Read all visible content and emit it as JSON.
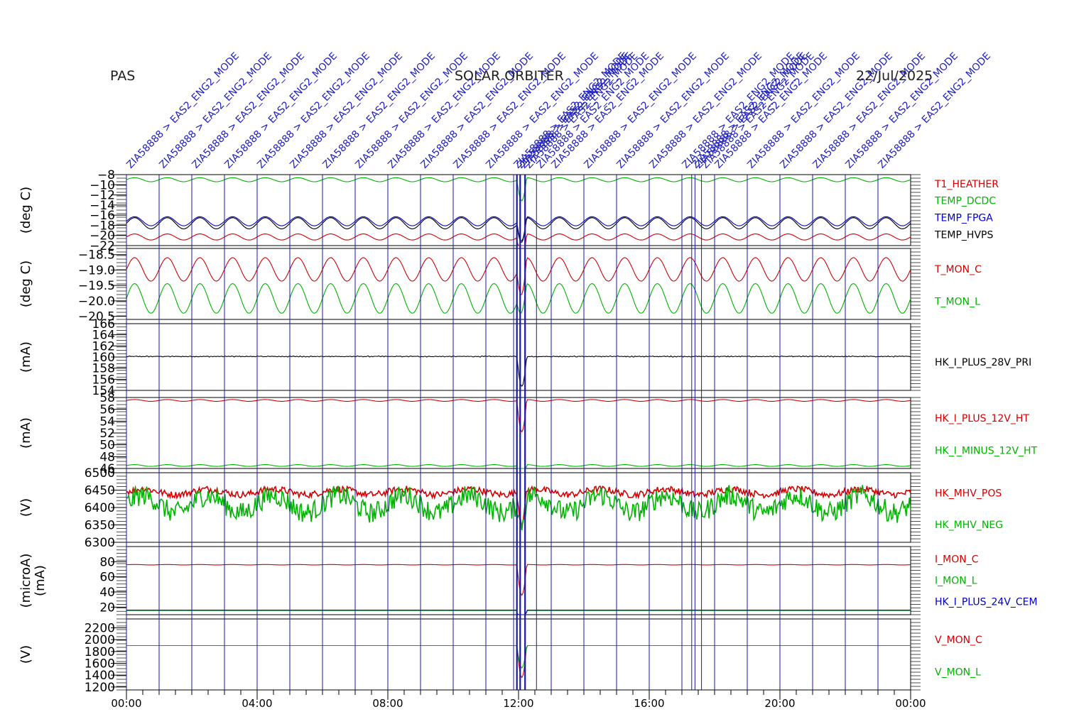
{
  "header": {
    "left": "PAS",
    "center": "SOLAR ORBITER",
    "right": "22/Jul/2025"
  },
  "colors": {
    "red": "#d40000",
    "green": "#00b400",
    "blue": "#0000c8",
    "black": "#000000",
    "event_line": "#1a1aa0",
    "event_label": "#2020c0",
    "frame": "#000000"
  },
  "chart_data": {
    "type": "line",
    "x_axis": {
      "unit": "time of day",
      "range": [
        "00:00",
        "24:00"
      ],
      "ticks": [
        "00:00",
        "04:00",
        "08:00",
        "12:00",
        "16:00",
        "20:00",
        "00:00"
      ]
    },
    "event_labels": [
      "ZIA58888 > EAS2_ENG2_MODE"
    ],
    "event_times_h": [
      0.0,
      1.0,
      2.0,
      3.0,
      4.0,
      5.0,
      6.0,
      7.0,
      8.0,
      9.0,
      10.0,
      11.0,
      11.85,
      11.95,
      12.05,
      12.2,
      12.55,
      13.0,
      14.0,
      15.0,
      16.0,
      17.0,
      17.3,
      17.4,
      17.6,
      18.0,
      19.0,
      20.0,
      21.0,
      22.0,
      23.0
    ],
    "panels": [
      {
        "ylabel": "(deg C)",
        "ylim": [
          -22,
          -8
        ],
        "yticks": [
          "-8",
          "-10",
          "-12",
          "-14",
          "-16",
          "-18",
          "-20",
          "-22"
        ],
        "series": [
          {
            "name": "T1_HEATHER",
            "color": "red",
            "base": -20.3,
            "amp": 0.6,
            "period_h": 1.0
          },
          {
            "name": "TEMP_DCDC",
            "color": "green",
            "base": -9.0,
            "amp": 0.4,
            "period_h": 1.0
          },
          {
            "name": "TEMP_FPGA",
            "color": "blue",
            "base": -17.2,
            "amp": 0.9,
            "period_h": 1.0
          },
          {
            "name": "TEMP_HVPS",
            "color": "black",
            "base": -17.6,
            "amp": 1.1,
            "period_h": 1.0
          }
        ]
      },
      {
        "ylabel": "(deg C)",
        "ylim": [
          -20.6,
          -18.3
        ],
        "yticks": [
          "-18.5",
          "-19.0",
          "-19.5",
          "-20.0",
          "-20.5"
        ],
        "series": [
          {
            "name": "T_MON_C",
            "color": "red",
            "base": -18.98,
            "amp": 0.38,
            "period_h": 1.0
          },
          {
            "name": "T_MON_L",
            "color": "green",
            "base": -19.92,
            "amp": 0.48,
            "period_h": 1.0
          }
        ]
      },
      {
        "ylabel": "(mA)",
        "ylim": [
          154,
          166
        ],
        "yticks": [
          "166",
          "164",
          "162",
          "160",
          "158",
          "156",
          "154"
        ],
        "series": [
          {
            "name": "HK_I_PLUS_28V_PRI",
            "color": "black",
            "base": 160.1,
            "amp": 0.05,
            "period_h": 0.05
          }
        ]
      },
      {
        "ylabel": "(mA)",
        "ylim": [
          46,
          58
        ],
        "yticks": [
          "58",
          "56",
          "54",
          "52",
          "50",
          "48",
          "46"
        ],
        "series": [
          {
            "name": "HK_I_PLUS_12V_HT",
            "color": "red",
            "base": 57.5,
            "amp": 0.15,
            "period_h": 1.0
          },
          {
            "name": "HK_I_MINUS_12V_HT",
            "color": "green",
            "base": 46.5,
            "amp": 0.15,
            "period_h": 1.0
          }
        ]
      },
      {
        "ylabel": "(V)",
        "ylim": [
          6300,
          6500
        ],
        "yticks": [
          "6500",
          "6450",
          "6400",
          "6350",
          "6300"
        ],
        "series": [
          {
            "name": "HK_MHV_POS",
            "color": "red",
            "base": 6445,
            "amp": 8,
            "period_h": 2.0
          },
          {
            "name": "HK_MHV_NEG",
            "color": "green",
            "base": 6410,
            "amp": 25,
            "period_h": 2.0
          }
        ]
      },
      {
        "ylabel": "(microA)",
        "ylabel2": "(mA)",
        "ylim": [
          10,
          100
        ],
        "yticks": [
          "80",
          "60",
          "40",
          "20"
        ],
        "series": [
          {
            "name": "I_MON_C",
            "color": "red",
            "base": 76,
            "amp": 0.3,
            "period_h": 1.0
          },
          {
            "name": "I_MON_L",
            "color": "green",
            "base": 15.5,
            "amp": 0.0,
            "period_h": 1.0
          },
          {
            "name": "HK_I_PLUS_24V_CEM",
            "color": "blue",
            "base": 16,
            "amp": 0.0,
            "period_h": 1.0
          }
        ]
      },
      {
        "ylabel": "(V)",
        "ylim": [
          1150,
          2350
        ],
        "yticks": [
          "2200",
          "2000",
          "1800",
          "1600",
          "1400",
          "1200"
        ],
        "series": [
          {
            "name": "V_MON_C",
            "color": "red",
            "base": 1900,
            "amp": 0.0,
            "period_h": 1.0
          },
          {
            "name": "V_MON_L",
            "color": "green",
            "base": 1900,
            "amp": 0.0,
            "period_h": 1.0
          }
        ]
      }
    ]
  }
}
